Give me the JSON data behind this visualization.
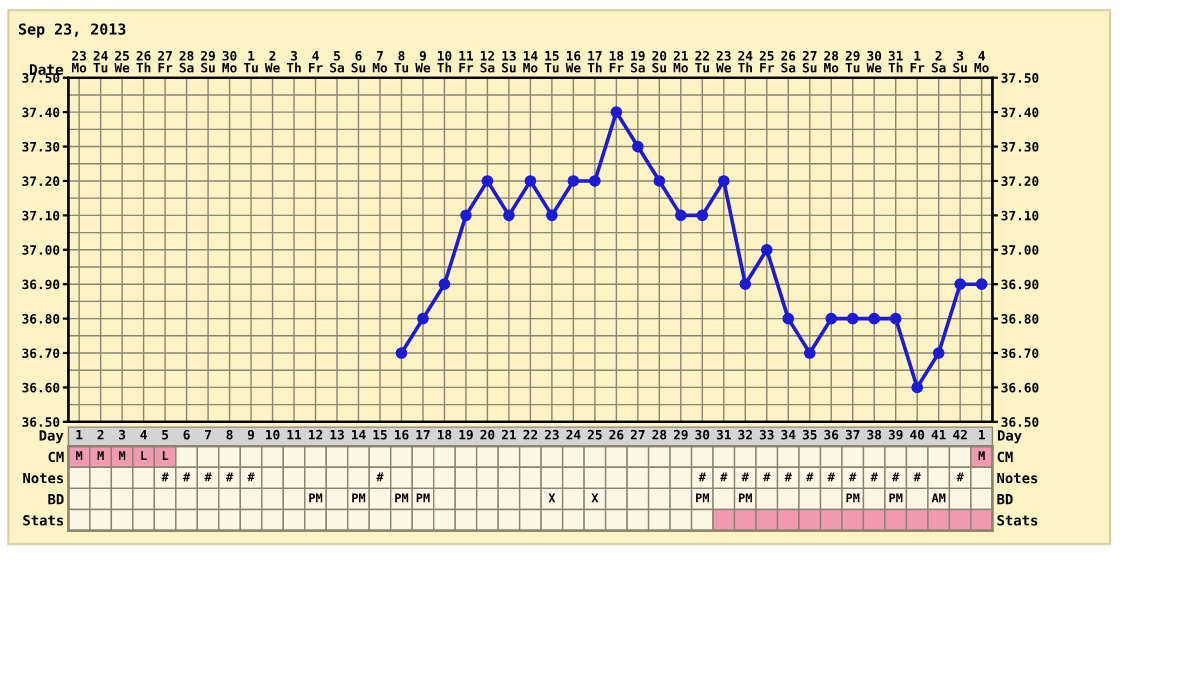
{
  "chart_data": [
    {
      "type": "line",
      "title": "Sep 23, 2013",
      "xlabel": "Date",
      "categories": [
        "23\nMo",
        "24\nTu",
        "25\nWe",
        "26\nTh",
        "27\nFr",
        "28\nSa",
        "29\nSu",
        "30\nMo",
        "1\nTu",
        "2\nWe",
        "3\nTh",
        "4\nFr",
        "5\nSa",
        "6\nSu",
        "7\nMo",
        "8\nTu",
        "9\nWe",
        "10\nTh",
        "11\nFr",
        "12\nSa",
        "13\nSu",
        "14\nMo",
        "15\nTu",
        "16\nWe",
        "17\nTh",
        "18\nFr",
        "19\nSa",
        "20\nSu",
        "21\nMo",
        "22\nTu",
        "23\nWe",
        "24\nTh",
        "25\nFr",
        "26\nSa",
        "27\nSu",
        "28\nMo",
        "29\nTu",
        "30\nWe",
        "31\nTh",
        "1\nFr",
        "2\nSa",
        "3\nSu",
        "4\nMo"
      ],
      "series": [
        {
          "color": "#1c1cd6",
          "values": [
            null,
            null,
            null,
            null,
            null,
            null,
            null,
            null,
            null,
            null,
            null,
            null,
            null,
            null,
            null,
            36.7,
            36.8,
            36.9,
            37.1,
            37.2,
            37.1,
            37.2,
            37.1,
            37.2,
            37.2,
            37.4,
            37.3,
            37.2,
            37.1,
            37.1,
            37.2,
            36.9,
            37.0,
            36.8,
            36.7,
            36.8,
            36.8,
            36.8,
            36.8,
            36.6,
            36.7,
            36.9,
            36.9
          ]
        }
      ],
      "ylim": [
        36.5,
        37.5
      ],
      "yticks": [
        {
          "value": 36.5,
          "label": "36.50"
        },
        {
          "value": 36.6,
          "label": "36.60"
        },
        {
          "value": 36.7,
          "label": "36.70"
        },
        {
          "value": 36.8,
          "label": "36.80"
        },
        {
          "value": 36.9,
          "label": "36.90"
        },
        {
          "value": 37.0,
          "label": "37.00"
        },
        {
          "value": 37.1,
          "label": "37.10"
        },
        {
          "value": 37.2,
          "label": "37.20"
        },
        {
          "value": 37.3,
          "label": "37.30"
        },
        {
          "value": 37.4,
          "label": "37.40"
        },
        {
          "value": 37.5,
          "label": "37.50"
        }
      ],
      "y2lim": [
        36.5,
        37.5
      ],
      "y2ticks": [
        {
          "value": 36.5,
          "label": "36.50"
        },
        {
          "value": 36.6,
          "label": "36.60"
        },
        {
          "value": 36.7,
          "label": "36.70"
        },
        {
          "value": 36.8,
          "label": "36.80"
        },
        {
          "value": 36.9,
          "label": "36.90"
        },
        {
          "value": 37.0,
          "label": "37.00"
        },
        {
          "value": 37.1,
          "label": "37.10"
        },
        {
          "value": 37.2,
          "label": "37.20"
        },
        {
          "value": 37.3,
          "label": "37.30"
        },
        {
          "value": 37.4,
          "label": "37.40"
        },
        {
          "value": 37.5,
          "label": "37.50"
        }
      ],
      "grid": true,
      "marker": "circle",
      "line_style": "solid",
      "legend": false
    },
    {
      "type": "heatmap",
      "xlabel": "Day",
      "categories": [
        "1",
        "2",
        "3",
        "4",
        "5",
        "6",
        "7",
        "8",
        "9",
        "10",
        "11",
        "12",
        "13",
        "14",
        "15",
        "16",
        "17",
        "18",
        "19",
        "20",
        "21",
        "22",
        "23",
        "24",
        "25",
        "26",
        "27",
        "28",
        "29",
        "30",
        "31",
        "32",
        "33",
        "34",
        "35",
        "36",
        "37",
        "38",
        "39",
        "40",
        "41",
        "42",
        "1"
      ],
      "y_categories": [
        "CM",
        "Notes",
        "BD",
        "Stats"
      ],
      "y2_categories": [
        "CM",
        "Notes",
        "BD",
        "Stats"
      ],
      "cells": [
        [
          null,
          null,
          null,
          null,
          null,
          null,
          null,
          null,
          null,
          null,
          null,
          null,
          null,
          null,
          null,
          null,
          null,
          null,
          null,
          null,
          null,
          null,
          null,
          null,
          null,
          null,
          null,
          null,
          null,
          null,
          null,
          null,
          null,
          null,
          null,
          null,
          null,
          null,
          null,
          null,
          null,
          null,
          null
        ],
        [
          null,
          null,
          null,
          null,
          null,
          null,
          null,
          null,
          null,
          null,
          null,
          null,
          null,
          null,
          null,
          null,
          null,
          null,
          null,
          null,
          null,
          null,
          null,
          null,
          null,
          null,
          null,
          null,
          null,
          null,
          null,
          null,
          null,
          null,
          null,
          null,
          null,
          null,
          null,
          null,
          null,
          null,
          null
        ],
        [
          null,
          null,
          null,
          null,
          null,
          null,
          null,
          null,
          null,
          null,
          null,
          null,
          null,
          null,
          null,
          null,
          null,
          null,
          null,
          null,
          null,
          null,
          null,
          null,
          null,
          null,
          null,
          null,
          null,
          null,
          null,
          null,
          null,
          null,
          null,
          null,
          null,
          null,
          null,
          null,
          null,
          null,
          null
        ],
        [
          null,
          null,
          null,
          null,
          null,
          null,
          null,
          null,
          null,
          null,
          null,
          null,
          null,
          null,
          null,
          null,
          null,
          null,
          null,
          null,
          null,
          null,
          null,
          null,
          null,
          null,
          null,
          null,
          null,
          null,
          null,
          null,
          null,
          null,
          null,
          null,
          null,
          null,
          null,
          null,
          null,
          null,
          null
        ]
      ],
      "colors": [
        [
          "#f29ab2",
          "#f29ab2",
          "#f29ab2",
          "#f29ab2",
          "#f29ab2",
          null,
          null,
          null,
          null,
          null,
          null,
          null,
          null,
          null,
          null,
          null,
          null,
          null,
          null,
          null,
          null,
          null,
          null,
          null,
          null,
          null,
          null,
          null,
          null,
          null,
          null,
          null,
          null,
          null,
          null,
          null,
          null,
          null,
          null,
          null,
          null,
          null,
          "#f29ab2"
        ],
        [
          null,
          null,
          null,
          null,
          null,
          null,
          null,
          null,
          null,
          null,
          null,
          null,
          null,
          null,
          null,
          null,
          null,
          null,
          null,
          null,
          null,
          null,
          null,
          null,
          null,
          null,
          null,
          null,
          null,
          null,
          null,
          null,
          null,
          null,
          null,
          null,
          null,
          null,
          null,
          null,
          null,
          null,
          null
        ],
        [
          null,
          null,
          null,
          null,
          null,
          null,
          null,
          null,
          null,
          null,
          null,
          null,
          null,
          null,
          null,
          null,
          null,
          null,
          null,
          null,
          null,
          null,
          null,
          null,
          null,
          null,
          null,
          null,
          null,
          null,
          null,
          null,
          null,
          null,
          null,
          null,
          null,
          null,
          null,
          null,
          null,
          null,
          null
        ],
        [
          null,
          null,
          null,
          null,
          null,
          null,
          null,
          null,
          null,
          null,
          null,
          null,
          null,
          null,
          null,
          null,
          null,
          null,
          null,
          null,
          null,
          null,
          null,
          null,
          null,
          null,
          null,
          null,
          null,
          null,
          "#f29ab2",
          "#f29ab2",
          "#f29ab2",
          "#f29ab2",
          "#f29ab2",
          "#f29ab2",
          "#f29ab2",
          "#f29ab2",
          "#f29ab2",
          "#f29ab2",
          "#f29ab2",
          "#f29ab2",
          "#f29ab2"
        ]
      ],
      "cell_labels": [
        [
          "M",
          "M",
          "M",
          "L",
          "L",
          null,
          null,
          null,
          null,
          null,
          null,
          null,
          null,
          null,
          null,
          null,
          null,
          null,
          null,
          null,
          null,
          null,
          null,
          null,
          null,
          null,
          null,
          null,
          null,
          null,
          null,
          null,
          null,
          null,
          null,
          null,
          null,
          null,
          null,
          null,
          null,
          null,
          "M"
        ],
        [
          null,
          null,
          null,
          null,
          "#",
          "#",
          "#",
          "#",
          "#",
          null,
          null,
          null,
          null,
          null,
          "#",
          null,
          null,
          null,
          null,
          null,
          null,
          null,
          null,
          null,
          null,
          null,
          null,
          null,
          null,
          "#",
          "#",
          "#",
          "#",
          "#",
          "#",
          "#",
          "#",
          "#",
          "#",
          "#",
          null,
          "#",
          null
        ],
        [
          null,
          null,
          null,
          null,
          null,
          null,
          null,
          null,
          null,
          null,
          null,
          "PM",
          null,
          "PM",
          null,
          "PM",
          "PM",
          null,
          null,
          null,
          null,
          null,
          "X",
          null,
          "X",
          null,
          null,
          null,
          null,
          "PM",
          null,
          "PM",
          null,
          null,
          null,
          null,
          "PM",
          null,
          "PM",
          null,
          "AM",
          null,
          null
        ],
        [
          null,
          null,
          null,
          null,
          null,
          null,
          null,
          null,
          null,
          null,
          null,
          null,
          null,
          null,
          null,
          null,
          null,
          null,
          null,
          null,
          null,
          null,
          null,
          null,
          null,
          null,
          null,
          null,
          null,
          null,
          null,
          null,
          null,
          null,
          null,
          null,
          null,
          null,
          null,
          null,
          null,
          null,
          null
        ]
      ],
      "legend": false
    }
  ]
}
